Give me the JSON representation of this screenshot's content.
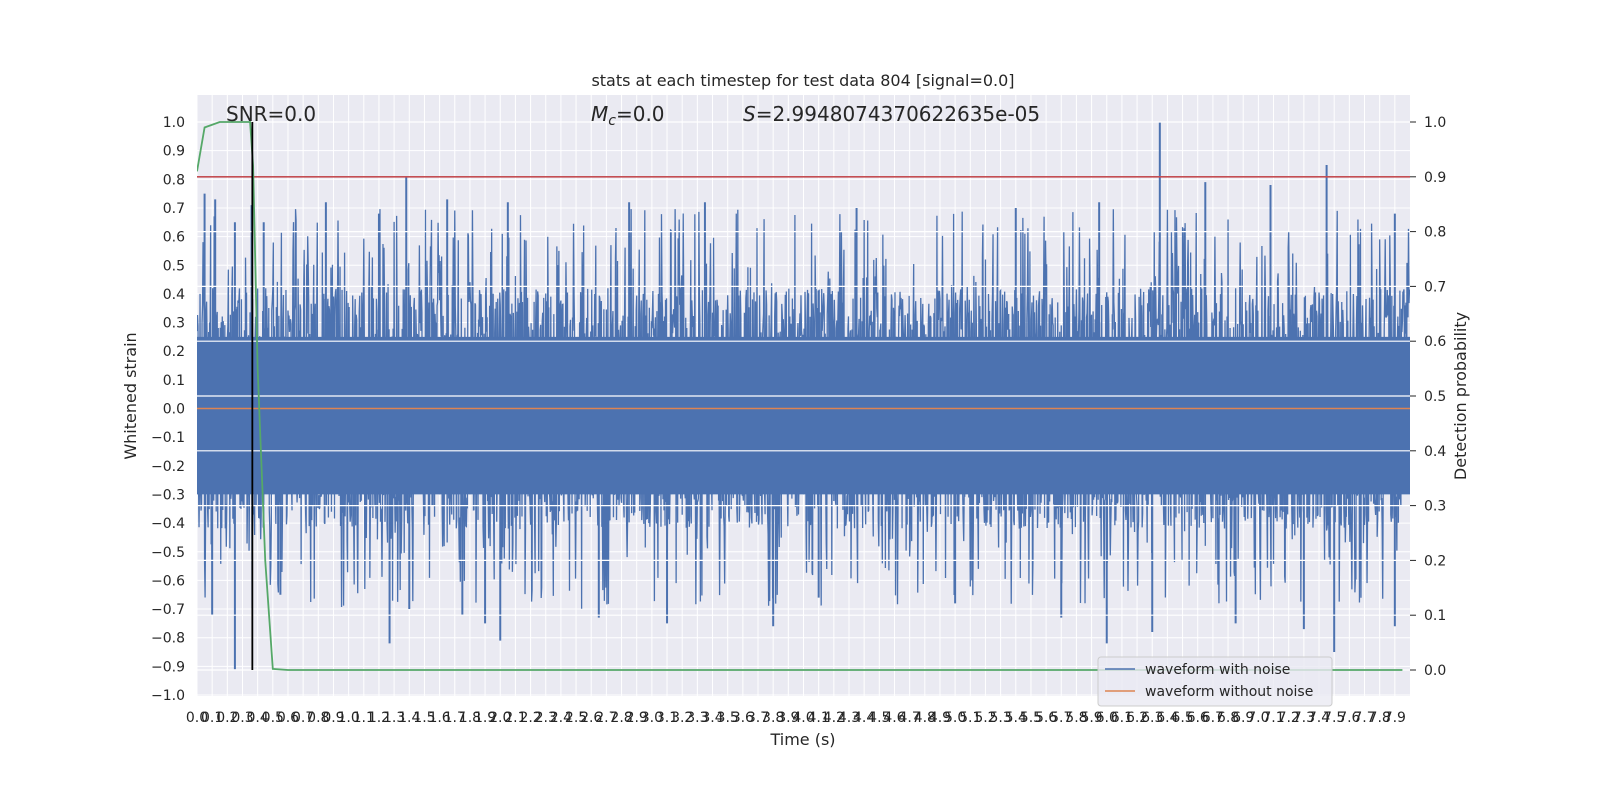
{
  "chart_data": {
    "type": "line",
    "title": "stats at each timestep for test data 804 [signal=0.0]",
    "xlabel": "Time (s)",
    "ylabel": "Whitened strain",
    "y2label": "Detection probability",
    "xlim": [
      0.0,
      8.0
    ],
    "ylim": [
      -1.0,
      1.1
    ],
    "y2lim": [
      -0.05,
      1.05
    ],
    "xticks": [
      "0.0",
      "0.1",
      "0.2",
      "0.3",
      "0.4",
      "0.5",
      "0.6",
      "0.7",
      "0.8",
      "0.9",
      "1.0",
      "1.1",
      "1.2",
      "1.3",
      "1.4",
      "1.5",
      "1.6",
      "1.7",
      "1.8",
      "1.9",
      "2.0",
      "2.1",
      "2.2",
      "2.3",
      "2.4",
      "2.5",
      "2.6",
      "2.7",
      "2.8",
      "2.9",
      "3.0",
      "3.1",
      "3.2",
      "3.3",
      "3.4",
      "3.5",
      "3.6",
      "3.7",
      "3.8",
      "3.9",
      "4.0",
      "4.1",
      "4.2",
      "4.3",
      "4.4",
      "4.5",
      "4.6",
      "4.7",
      "4.8",
      "4.9",
      "5.0",
      "5.1",
      "5.2",
      "5.3",
      "5.4",
      "5.5",
      "5.6",
      "5.7",
      "5.8",
      "5.9",
      "6.0",
      "6.1",
      "6.2",
      "6.3",
      "6.4",
      "6.5",
      "6.6",
      "6.7",
      "6.8",
      "6.9",
      "7.0",
      "7.1",
      "7.2",
      "7.3",
      "7.4",
      "7.5",
      "7.6",
      "7.7",
      "7.8",
      "7.9"
    ],
    "yticks": [
      "-1.0",
      "-0.9",
      "-0.8",
      "-0.7",
      "-0.6",
      "-0.5",
      "-0.4",
      "-0.3",
      "-0.2",
      "-0.1",
      "0.0",
      "0.1",
      "0.2",
      "0.3",
      "0.4",
      "0.5",
      "0.6",
      "0.7",
      "0.8",
      "0.9",
      "1.0"
    ],
    "y2ticks": [
      "0.0",
      "0.1",
      "0.2",
      "0.3",
      "0.4",
      "0.5",
      "0.6",
      "0.7",
      "0.8",
      "0.9",
      "1.0"
    ],
    "annotations": {
      "snr": "SNR=0.0",
      "mc_symbol": "M",
      "mc_sub": "c",
      "mc_value": "=0.0",
      "s_symbol": "S",
      "s_value": "=2.9948074370622635e-05"
    },
    "grid": true,
    "legend_placement": "lower-right",
    "legend": [
      "waveform with noise",
      "waveform without noise"
    ],
    "colors": {
      "noise": "#4c72b0",
      "clean": "#dd8452",
      "probability": "#55a868",
      "threshold": "#c44e52",
      "marker": "#000000",
      "background": "#eaeaf2"
    },
    "series": [
      {
        "name": "waveform with noise",
        "axis": "left",
        "description_stats": {
          "envelope_upper": 0.42,
          "envelope_lower": -0.42
        },
        "peaks": [
          {
            "x": 0.05,
            "y": 0.75
          },
          {
            "x": 0.12,
            "y": 0.73
          },
          {
            "x": 0.25,
            "y": 0.65
          },
          {
            "x": 0.36,
            "y": 0.71
          },
          {
            "x": 0.44,
            "y": 0.65
          },
          {
            "x": 0.85,
            "y": 0.72
          },
          {
            "x": 1.2,
            "y": 0.68
          },
          {
            "x": 1.38,
            "y": 0.81
          },
          {
            "x": 1.65,
            "y": 0.73
          },
          {
            "x": 2.05,
            "y": 0.72
          },
          {
            "x": 2.85,
            "y": 0.72
          },
          {
            "x": 3.35,
            "y": 0.72
          },
          {
            "x": 4.35,
            "y": 0.7
          },
          {
            "x": 5.4,
            "y": 0.7
          },
          {
            "x": 5.95,
            "y": 0.72
          },
          {
            "x": 6.35,
            "y": 1.0
          },
          {
            "x": 6.65,
            "y": 0.79
          },
          {
            "x": 7.08,
            "y": 0.78
          },
          {
            "x": 7.45,
            "y": 0.85
          },
          {
            "x": 7.9,
            "y": 0.68
          }
        ],
        "troughs": [
          {
            "x": 0.25,
            "y": -0.91
          },
          {
            "x": 0.1,
            "y": -0.72
          },
          {
            "x": 0.55,
            "y": -0.65
          },
          {
            "x": 1.27,
            "y": -0.82
          },
          {
            "x": 1.4,
            "y": -0.7
          },
          {
            "x": 1.75,
            "y": -0.72
          },
          {
            "x": 1.9,
            "y": -0.75
          },
          {
            "x": 2.0,
            "y": -0.81
          },
          {
            "x": 2.65,
            "y": -0.73
          },
          {
            "x": 3.1,
            "y": -0.75
          },
          {
            "x": 3.8,
            "y": -0.76
          },
          {
            "x": 4.1,
            "y": -0.66
          },
          {
            "x": 5.0,
            "y": -0.68
          },
          {
            "x": 5.7,
            "y": -0.73
          },
          {
            "x": 6.0,
            "y": -0.82
          },
          {
            "x": 6.3,
            "y": -0.78
          },
          {
            "x": 6.85,
            "y": -0.75
          },
          {
            "x": 7.3,
            "y": -0.77
          },
          {
            "x": 7.5,
            "y": -0.85
          },
          {
            "x": 7.9,
            "y": -0.76
          }
        ]
      },
      {
        "name": "waveform without noise",
        "axis": "left",
        "x": [
          0.0,
          8.0
        ],
        "y": [
          0.0,
          0.0
        ]
      },
      {
        "name": "",
        "axis": "right",
        "x": [
          0.0,
          0.05,
          0.1,
          0.15,
          0.2,
          0.25,
          0.3,
          0.35,
          0.37,
          0.4,
          0.45,
          0.5,
          0.6,
          1.0,
          2.0,
          3.0,
          4.0,
          5.0,
          6.0,
          7.0,
          7.95
        ],
        "y": [
          0.91,
          0.99,
          0.995,
          1.0,
          1.0,
          1.0,
          1.0,
          1.0,
          0.92,
          0.55,
          0.2,
          0.002,
          0.0,
          0.0,
          0.0,
          0.0,
          0.0,
          0.0,
          0.0,
          0.0,
          0.0
        ]
      }
    ],
    "threshold_y2": 0.9,
    "marker_x": 0.365
  }
}
